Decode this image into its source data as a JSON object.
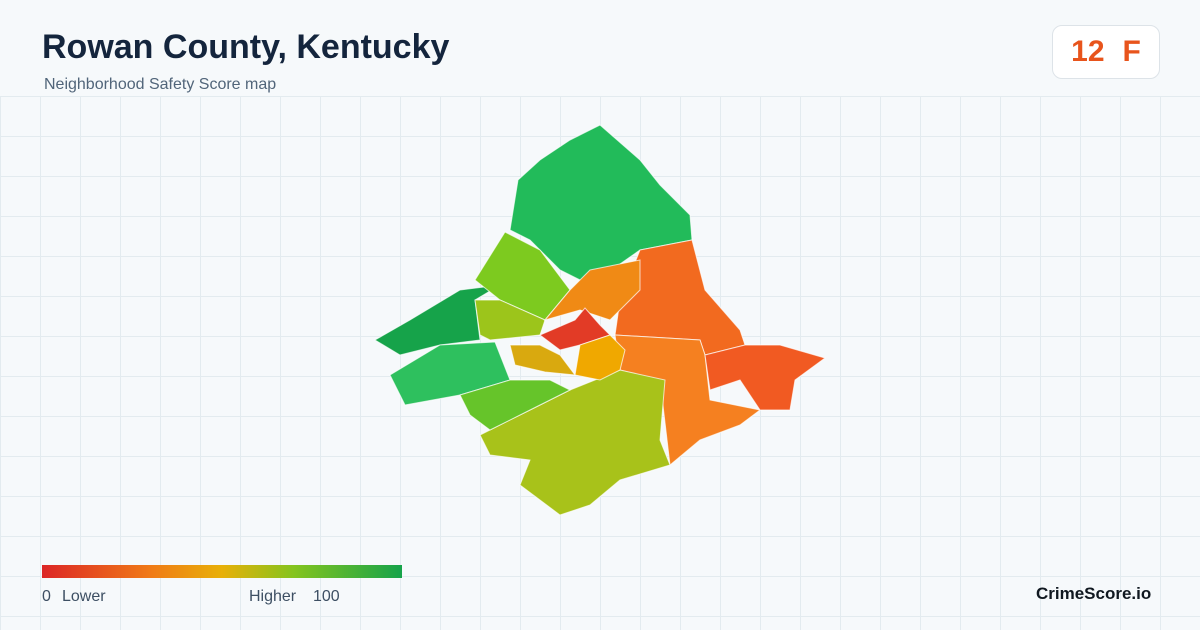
{
  "header": {
    "title": "Rowan County, Kentucky",
    "subtitle": "Neighborhood Safety Score map"
  },
  "badge": {
    "score": 12,
    "grade": "F"
  },
  "legend": {
    "min": 0,
    "min_label": "Lower",
    "max_label": "Higher",
    "max": 100
  },
  "brand": "CrimeScore.io"
}
